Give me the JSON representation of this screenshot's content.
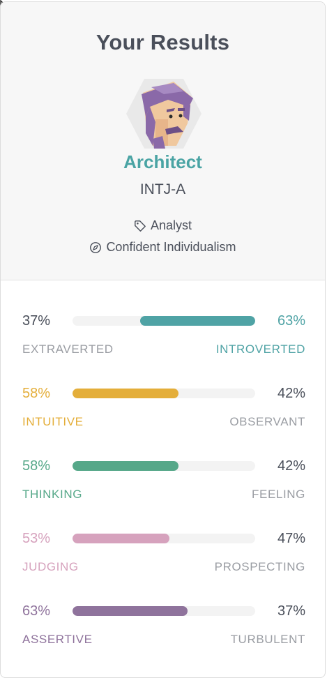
{
  "header": {
    "title": "Your Results",
    "type_name": "Architect",
    "type_code": "INTJ-A",
    "role": "Analyst",
    "strategy": "Confident Individualism"
  },
  "icons": {
    "role": "tag-icon",
    "strategy": "compass-icon",
    "avatar": "architect-avatar-illustration"
  },
  "traits": [
    {
      "left_pct": "37%",
      "right_pct": "63%",
      "left_label": "EXTRAVERTED",
      "right_label": "INTROVERTED",
      "dominant": "right",
      "fill_fraction": 0.63,
      "color": "#4fa3a5"
    },
    {
      "left_pct": "58%",
      "right_pct": "42%",
      "left_label": "INTUITIVE",
      "right_label": "OBSERVANT",
      "dominant": "left",
      "fill_fraction": 0.58,
      "color": "#e4ae3a"
    },
    {
      "left_pct": "58%",
      "right_pct": "42%",
      "left_label": "THINKING",
      "right_label": "FEELING",
      "dominant": "left",
      "fill_fraction": 0.58,
      "color": "#56a889"
    },
    {
      "left_pct": "53%",
      "right_pct": "47%",
      "left_label": "JUDGING",
      "right_label": "PROSPECTING",
      "dominant": "left",
      "fill_fraction": 0.53,
      "color": "#d6a2bd"
    },
    {
      "left_pct": "63%",
      "right_pct": "37%",
      "left_label": "ASSERTIVE",
      "right_label": "TURBULENT",
      "dominant": "left",
      "fill_fraction": 0.63,
      "color": "#8f739c"
    }
  ],
  "colors": {
    "text_dark": "#4a4f5a",
    "text_muted": "#9a9da3",
    "type_name": "#4aa4a4"
  }
}
